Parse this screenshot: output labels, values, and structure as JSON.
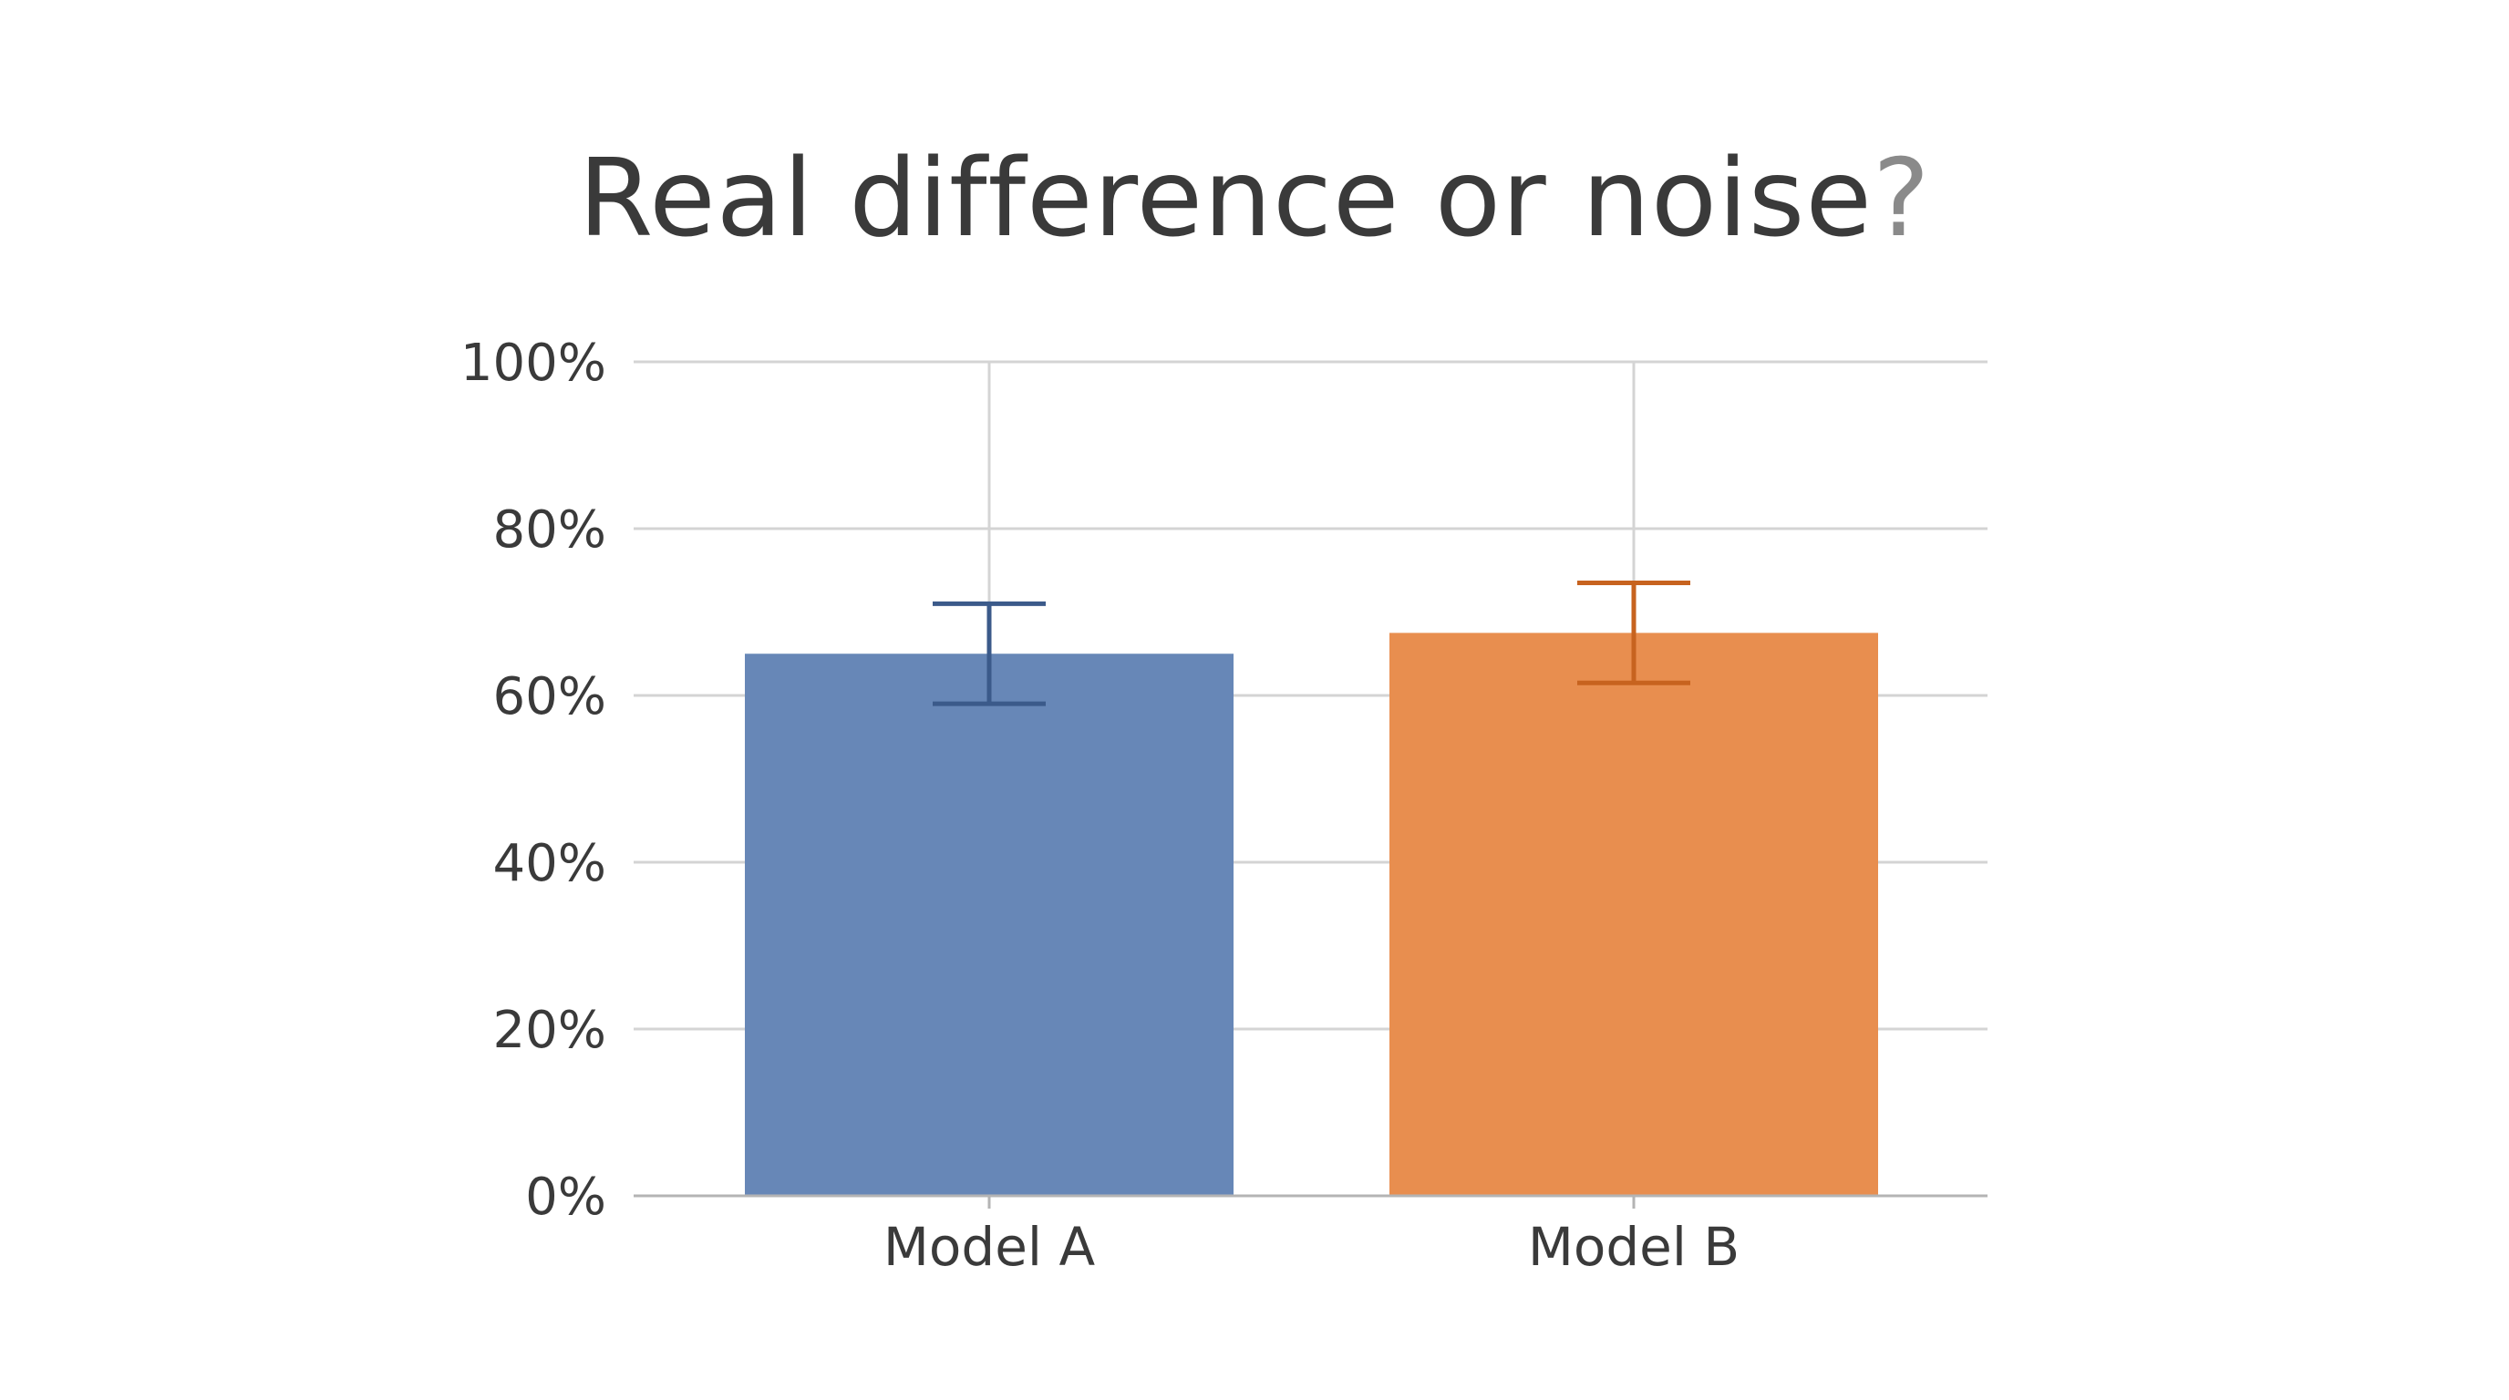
{
  "chart_data": {
    "type": "bar",
    "title": "Real difference or noise",
    "title_accent": "?",
    "xlabel": "",
    "ylabel": "",
    "categories": [
      "Model A",
      "Model B"
    ],
    "values": [
      65,
      67.5
    ],
    "error_low": [
      59,
      61.5
    ],
    "error_high": [
      71,
      73.5
    ],
    "ylim": [
      0,
      100
    ],
    "yticks": [
      0,
      20,
      40,
      60,
      80,
      100
    ],
    "ytick_labels": [
      "0%",
      "20%",
      "40%",
      "60%",
      "80%",
      "100%"
    ],
    "colors": [
      "#6787b7",
      "#e88e4f"
    ],
    "error_colors": [
      "#3b5a8a",
      "#c7631f"
    ],
    "grid": true,
    "legend": "none"
  }
}
